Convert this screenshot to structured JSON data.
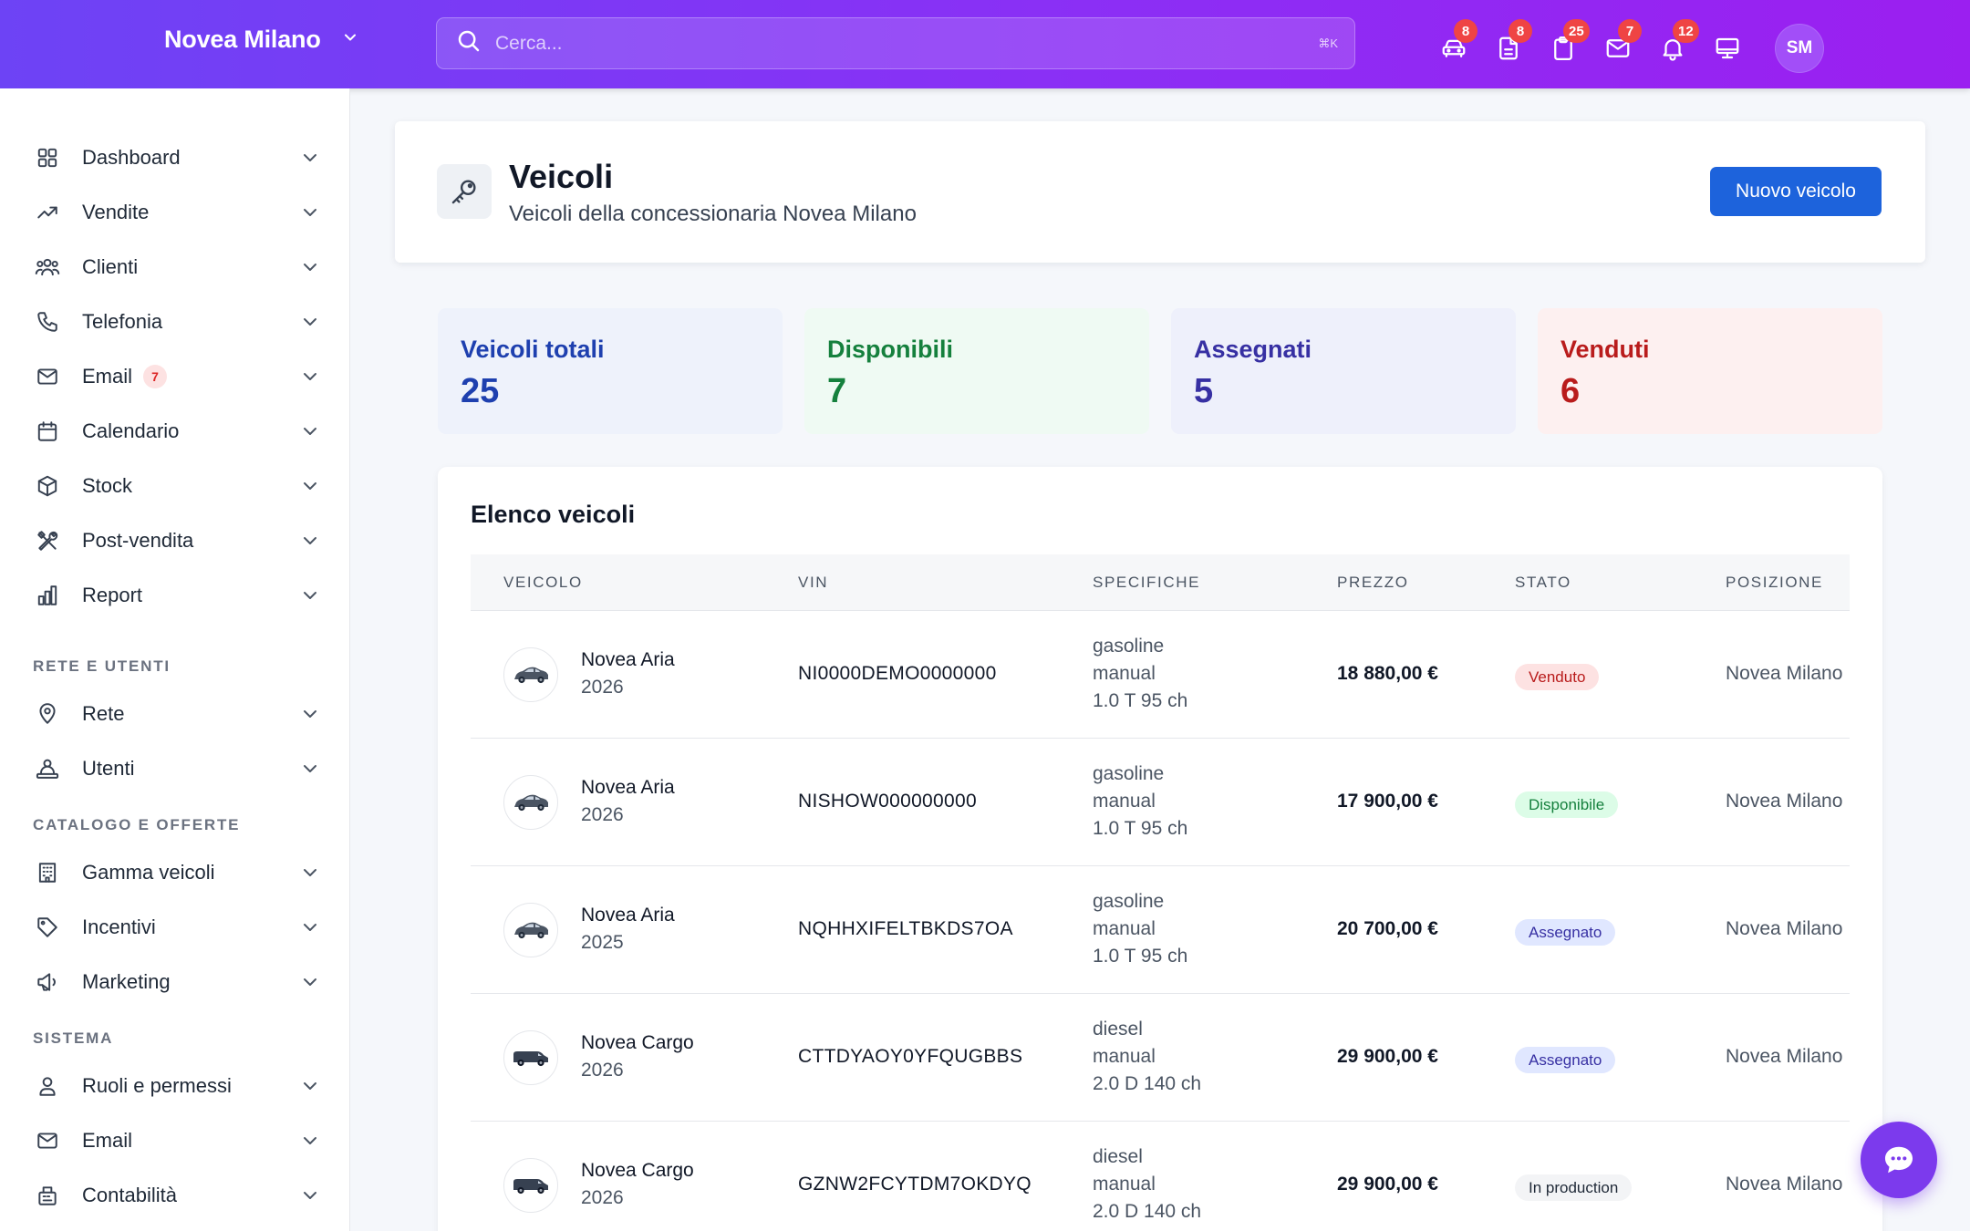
{
  "topbar": {
    "dealer_name": "Novea Milano",
    "search_placeholder": "Cerca...",
    "search_shortcut": "⌘K",
    "icons": [
      {
        "name": "car-icon",
        "badge": "8"
      },
      {
        "name": "document-icon",
        "badge": "8"
      },
      {
        "name": "clipboard-icon",
        "badge": "25"
      },
      {
        "name": "mail-icon",
        "badge": "7"
      },
      {
        "name": "bell-icon",
        "badge": "12"
      },
      {
        "name": "monitor-icon",
        "badge": ""
      }
    ],
    "avatar_initials": "SM"
  },
  "sidebar": {
    "items": [
      {
        "label": "Dashboard"
      },
      {
        "label": "Vendite"
      },
      {
        "label": "Clienti"
      },
      {
        "label": "Telefonia"
      },
      {
        "label": "Email",
        "badge": "7"
      },
      {
        "label": "Calendario"
      },
      {
        "label": "Stock"
      },
      {
        "label": "Post-vendita"
      },
      {
        "label": "Report"
      }
    ],
    "section_rete": "RETE E UTENTI",
    "rete_items": [
      {
        "label": "Rete"
      },
      {
        "label": "Utenti"
      }
    ],
    "section_catalogo": "CATALOGO E OFFERTE",
    "catalogo_items": [
      {
        "label": "Gamma veicoli"
      },
      {
        "label": "Incentivi"
      },
      {
        "label": "Marketing"
      }
    ],
    "section_sistema": "SISTEMA",
    "sistema_items": [
      {
        "label": "Ruoli e permessi"
      },
      {
        "label": "Email"
      },
      {
        "label": "Contabilità"
      }
    ]
  },
  "header": {
    "title": "Veicoli",
    "subtitle": "Veicoli della concessionaria Novea Milano",
    "new_button": "Nuovo veicolo"
  },
  "stats": [
    {
      "label": "Veicoli totali",
      "value": "25",
      "bg": "#eef2fb",
      "color": "#1e40af"
    },
    {
      "label": "Disponibili",
      "value": "7",
      "bg": "#effaf3",
      "color": "#15803d"
    },
    {
      "label": "Assegnati",
      "value": "5",
      "bg": "#eef0fb",
      "color": "#3730a3"
    },
    {
      "label": "Venduti",
      "value": "6",
      "bg": "#fdf0f0",
      "color": "#b91c1c"
    }
  ],
  "table": {
    "title": "Elenco veicoli",
    "columns": [
      "VEICOLO",
      "VIN",
      "SPECIFICHE",
      "PREZZO",
      "STATO",
      "POSIZIONE"
    ],
    "rows": [
      {
        "name": "Novea Aria",
        "year": "2026",
        "vin": "NI0000DEMO0000000",
        "spec": [
          "gasoline",
          "manual",
          "1.0 T 95 ch"
        ],
        "price": "18 880,00 €",
        "status": "Venduto",
        "status_bg": "#fde2e2",
        "status_color": "#b91c1c",
        "position": "Novea Milano",
        "vehicle_type": "hatchback"
      },
      {
        "name": "Novea Aria",
        "year": "2026",
        "vin": "NISHOW000000000",
        "spec": [
          "gasoline",
          "manual",
          "1.0 T 95 ch"
        ],
        "price": "17 900,00 €",
        "status": "Disponibile",
        "status_bg": "#dcfce7",
        "status_color": "#15803d",
        "position": "Novea Milano",
        "vehicle_type": "hatchback"
      },
      {
        "name": "Novea Aria",
        "year": "2025",
        "vin": "NQHHXIFELTBKDS7OA",
        "spec": [
          "gasoline",
          "manual",
          "1.0 T 95 ch"
        ],
        "price": "20 700,00 €",
        "status": "Assegnato",
        "status_bg": "#e0e7ff",
        "status_color": "#3730a3",
        "position": "Novea Milano",
        "vehicle_type": "hatchback"
      },
      {
        "name": "Novea Cargo",
        "year": "2026",
        "vin": "CTTDYAOY0YFQUGBBS",
        "spec": [
          "diesel",
          "manual",
          "2.0 D 140 ch"
        ],
        "price": "29 900,00 €",
        "status": "Assegnato",
        "status_bg": "#e0e7ff",
        "status_color": "#3730a3",
        "position": "Novea Milano",
        "vehicle_type": "van"
      },
      {
        "name": "Novea Cargo",
        "year": "2026",
        "vin": "GZNW2FCYTDM7OKDYQ",
        "spec": [
          "diesel",
          "manual",
          "2.0 D 140 ch"
        ],
        "price": "29 900,00 €",
        "status": "In production",
        "status_bg": "#f3f4f6",
        "status_color": "#1f2937",
        "position": "Novea Milano",
        "vehicle_type": "van"
      }
    ]
  }
}
